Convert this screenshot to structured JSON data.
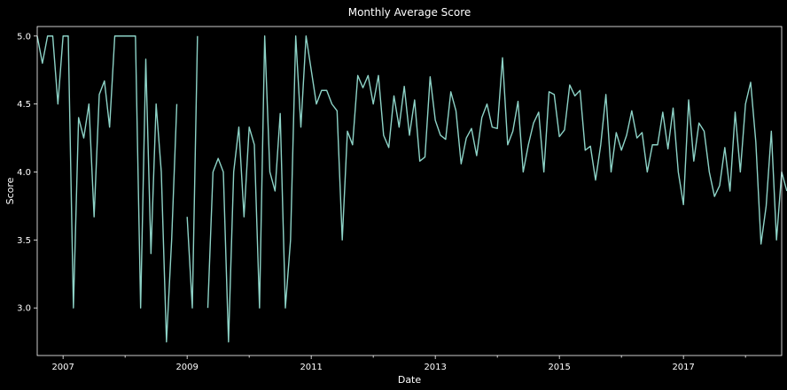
{
  "chart_data": {
    "type": "line",
    "title": "Monthly Average Score",
    "xlabel": "Date",
    "ylabel": "Score",
    "x_start": "2006-08",
    "x_end": "2018-08",
    "x_ticks": [
      "2007",
      "2009",
      "2011",
      "2013",
      "2015",
      "2017"
    ],
    "ylim": [
      2.65,
      5.07
    ],
    "y_ticks": [
      "3.0",
      "3.5",
      "4.0",
      "4.5",
      "5.0"
    ],
    "grid": false,
    "line_color": "#8dd3c7",
    "background": "#000000",
    "series": [
      {
        "values": [
          5.0,
          4.8,
          5.0,
          5.0,
          4.5,
          5.0,
          5.0,
          3.0,
          4.4,
          4.25,
          4.5,
          3.67,
          4.57,
          4.67,
          4.33,
          5.0,
          5.0,
          5.0,
          5.0,
          5.0,
          3.0,
          4.83,
          3.4,
          4.5,
          4.0,
          2.75,
          3.5,
          4.5,
          null,
          3.67,
          3.0,
          5.0,
          null,
          3.0,
          4.0,
          4.1,
          4.0,
          2.75,
          4.0,
          4.33,
          3.67,
          4.33,
          4.2,
          3.0,
          5.0,
          4.0,
          3.86,
          4.43,
          3.0,
          3.5,
          5.0,
          4.33,
          5.0,
          4.75,
          4.5,
          4.6,
          4.6,
          4.5,
          4.45,
          3.5,
          4.3,
          4.2,
          4.71,
          4.62,
          4.71,
          4.5,
          4.71,
          4.27,
          4.18,
          4.56,
          4.33,
          4.63,
          4.27,
          4.53,
          4.08,
          4.11,
          4.7,
          4.38,
          4.27,
          4.24,
          4.59,
          4.45,
          4.06,
          4.25,
          4.32,
          4.12,
          4.4,
          4.5,
          4.33,
          4.32,
          4.84,
          4.2,
          4.3,
          4.52,
          4.0,
          4.2,
          4.36,
          4.44,
          4.0,
          4.59,
          4.57,
          4.26,
          4.31,
          4.64,
          4.56,
          4.6,
          4.16,
          4.19,
          3.94,
          4.2,
          4.57,
          4.0,
          4.29,
          4.16,
          4.27,
          4.45,
          4.25,
          4.29,
          4.0,
          4.2,
          4.2,
          4.44,
          4.17,
          4.47,
          4.0,
          3.76,
          4.53,
          4.08,
          4.36,
          4.3,
          4.0,
          3.82,
          3.9,
          4.18,
          3.86,
          4.44,
          4.0,
          4.5,
          4.66,
          4.22,
          3.47,
          3.75,
          4.3,
          3.5,
          4.0,
          3.86
        ]
      }
    ]
  }
}
